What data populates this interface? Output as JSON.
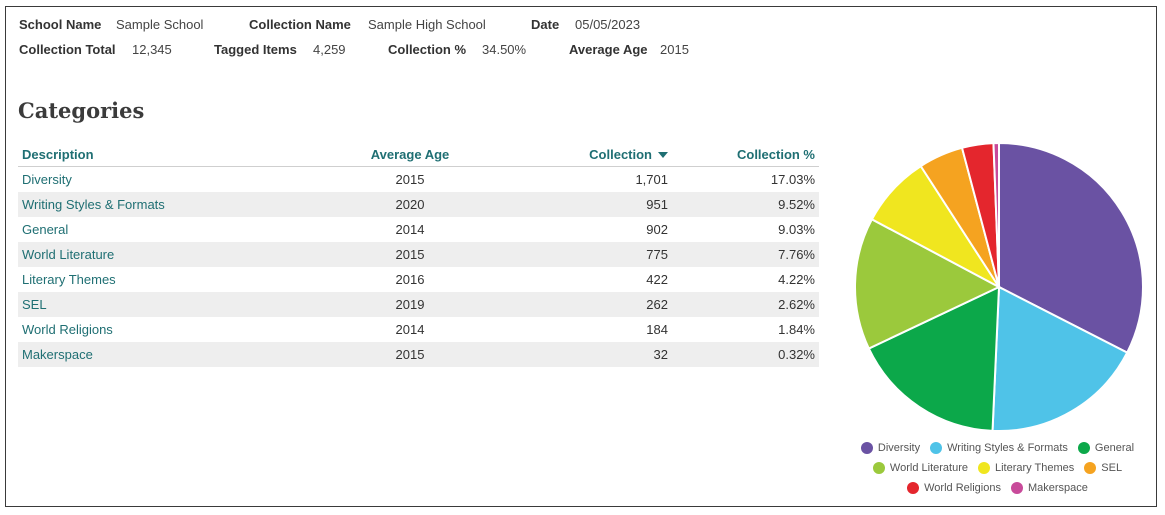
{
  "meta": {
    "school_name_label": "School Name",
    "school_name": "Sample School",
    "collection_name_label": "Collection Name",
    "collection_name": "Sample High School",
    "date_label": "Date",
    "date": "05/05/2023",
    "collection_total_label": "Collection Total",
    "collection_total": "12,345",
    "tagged_items_label": "Tagged Items",
    "tagged_items": "4,259",
    "collection_pct_label": "Collection %",
    "collection_pct": "34.50%",
    "average_age_label": "Average Age",
    "average_age": "2015"
  },
  "section_title": "Categories",
  "table": {
    "headers": {
      "description": "Description",
      "average_age": "Average Age",
      "collection": "Collection",
      "collection_pct": "Collection %"
    },
    "rows": [
      {
        "description": "Diversity",
        "average_age": "2015",
        "collection": "1,701",
        "collection_pct": "17.03%"
      },
      {
        "description": "Writing Styles & Formats",
        "average_age": "2020",
        "collection": "951",
        "collection_pct": "9.52%"
      },
      {
        "description": "General",
        "average_age": "2014",
        "collection": "902",
        "collection_pct": "9.03%"
      },
      {
        "description": "World Literature",
        "average_age": "2015",
        "collection": "775",
        "collection_pct": "7.76%"
      },
      {
        "description": "Literary Themes",
        "average_age": "2016",
        "collection": "422",
        "collection_pct": "4.22%"
      },
      {
        "description": "SEL",
        "average_age": "2019",
        "collection": "262",
        "collection_pct": "2.62%"
      },
      {
        "description": "World Religions",
        "average_age": "2014",
        "collection": "184",
        "collection_pct": "1.84%"
      },
      {
        "description": "Makerspace",
        "average_age": "2015",
        "collection": "32",
        "collection_pct": "0.32%"
      }
    ]
  },
  "chart_data": {
    "type": "pie",
    "categories": [
      "Diversity",
      "Writing Styles & Formats",
      "General",
      "World Literature",
      "Literary Themes",
      "SEL",
      "World Religions",
      "Makerspace"
    ],
    "values": [
      1701,
      951,
      902,
      775,
      422,
      262,
      184,
      32
    ],
    "colors": [
      "#6a52a3",
      "#4fc3e8",
      "#0ca84a",
      "#9bc93c",
      "#f0e61f",
      "#f5a320",
      "#e4262d",
      "#c84a9a"
    ],
    "legend_position": "bottom",
    "legend_rows": [
      [
        0,
        1,
        2
      ],
      [
        3,
        4,
        5
      ],
      [
        6,
        7
      ]
    ]
  }
}
